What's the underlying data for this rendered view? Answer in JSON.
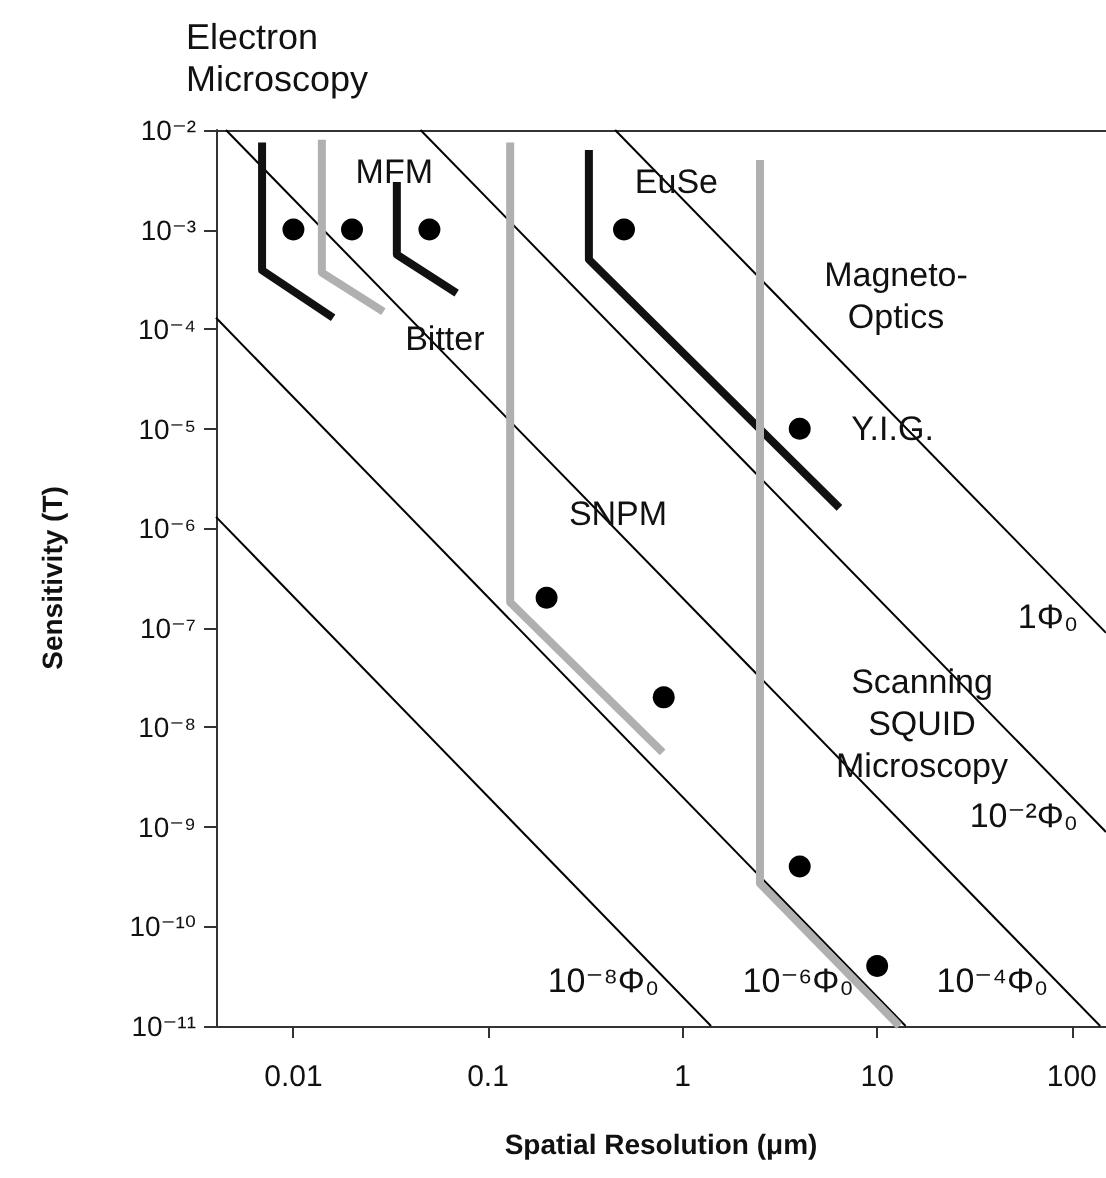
{
  "chart_data": {
    "type": "scatter",
    "xlabel": "Spatial Resolution (μm)",
    "ylabel": "Sensitivity (T)",
    "log": "xy",
    "grid": false,
    "marker": "circle",
    "xlim": [
      0.004,
      150
    ],
    "xticks": [
      0.01,
      0.1,
      1,
      10,
      100
    ],
    "ylim": [
      1e-11,
      0.01
    ],
    "yticks": [
      {
        "value": 1e-11,
        "label": "10⁻¹¹"
      },
      {
        "value": 1e-10,
        "label": "10⁻¹⁰"
      },
      {
        "value": 1e-09,
        "label": "10⁻⁹"
      },
      {
        "value": 1e-08,
        "label": "10⁻⁸"
      },
      {
        "value": 1e-07,
        "label": "10⁻⁷"
      },
      {
        "value": 1e-06,
        "label": "10⁻⁶"
      },
      {
        "value": 1e-05,
        "label": "10⁻⁵"
      },
      {
        "value": 0.0001,
        "label": "10⁻⁴"
      },
      {
        "value": 0.001,
        "label": "10⁻³"
      },
      {
        "value": 0.01,
        "label": "10⁻²"
      }
    ],
    "series": [
      {
        "type": "line",
        "name": "10⁻⁸Φ₀",
        "marker": "none",
        "color": "#000000",
        "x": [
          0.004,
          1.4
        ],
        "values": [
          1.3e-06,
          1e-11
        ]
      },
      {
        "type": "line",
        "name": "10⁻⁶Φ₀",
        "marker": "none",
        "color": "#000000",
        "x": [
          0.004,
          14
        ],
        "values": [
          0.00013,
          1e-11
        ]
      },
      {
        "type": "line",
        "name": "10⁻⁴Φ₀",
        "marker": "none",
        "color": "#000000",
        "x": [
          0.0045,
          140
        ],
        "values": [
          0.01,
          1e-11
        ]
      },
      {
        "type": "line",
        "name": "10⁻²Φ₀",
        "marker": "none",
        "color": "#000000",
        "x": [
          0.045,
          150
        ],
        "values": [
          0.01,
          8.9e-10
        ]
      },
      {
        "type": "line",
        "name": "1Φ₀",
        "marker": "none",
        "color": "#000000",
        "x": [
          0.45,
          150
        ],
        "values": [
          0.01,
          8.9e-08
        ]
      },
      {
        "type": "line",
        "marker": "none",
        "color": "#111111",
        "x": [
          0.0069,
          0.0069,
          0.016
        ],
        "values": [
          0.0075,
          0.00039,
          0.00013
        ]
      },
      {
        "type": "line",
        "marker": "none",
        "color": "#111111",
        "x": [
          0.034,
          0.034,
          0.069
        ],
        "values": [
          0.003,
          0.00056,
          0.00023
        ]
      },
      {
        "type": "line",
        "marker": "none",
        "color": "#111111",
        "x": [
          0.33,
          0.33,
          6.4
        ],
        "values": [
          0.0063,
          0.0005,
          1.6e-06
        ]
      },
      {
        "type": "line",
        "marker": "none",
        "color": "#b0b0b0",
        "x": [
          0.014,
          0.014,
          0.029
        ],
        "values": [
          0.008,
          0.00037,
          0.00015
        ]
      },
      {
        "type": "line",
        "marker": "none",
        "color": "#b0b0b0",
        "x": [
          0.13,
          0.13,
          0.79
        ],
        "values": [
          0.0075,
          1.8e-07,
          5.6e-09
        ]
      },
      {
        "type": "line",
        "marker": "none",
        "color": "#b0b0b0",
        "x": [
          2.5,
          2.5,
          13
        ],
        "values": [
          0.005,
          2.7e-10,
          1e-11
        ]
      },
      {
        "color": "#000000",
        "x": [
          0.01,
          0.02,
          0.05,
          0.5,
          4,
          0.2,
          0.8,
          4,
          10
        ],
        "values": [
          0.001,
          0.001,
          0.001,
          0.001,
          1e-05,
          2e-07,
          2e-08,
          4e-10,
          4e-11
        ]
      }
    ],
    "annotations": [
      "Electron Microscopy",
      {
        "text": "MFM",
        "x": 0.033,
        "y": 0.0038
      },
      {
        "text": "Bitter",
        "x": 0.06,
        "y": 8e-05
      },
      {
        "text": "EuSe",
        "x": 0.93,
        "y": 0.003
      },
      "Magneto-Optics",
      {
        "text": "Y.I.G.",
        "x": 12,
        "y": 1e-05
      },
      "SNPM",
      "Scanning SQUID Microscopy"
    ]
  }
}
